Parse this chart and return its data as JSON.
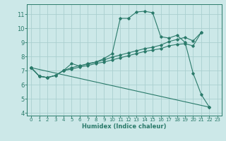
{
  "xlabel": "Humidex (Indice chaleur)",
  "bg_color": "#cce8e8",
  "grid_color": "#aacfcf",
  "line_color": "#2a7a6a",
  "spine_color": "#2a7a6a",
  "xlim": [
    -0.5,
    23.5
  ],
  "ylim": [
    3.8,
    11.7
  ],
  "xticks": [
    0,
    1,
    2,
    3,
    4,
    5,
    6,
    7,
    8,
    9,
    10,
    11,
    12,
    13,
    14,
    15,
    16,
    17,
    18,
    19,
    20,
    21,
    22,
    23
  ],
  "yticks": [
    4,
    5,
    6,
    7,
    8,
    9,
    10,
    11
  ],
  "lines": [
    {
      "x": [
        0,
        1,
        2,
        3,
        4,
        5,
        6,
        7,
        8,
        9,
        10,
        11,
        12,
        13,
        14,
        15,
        16,
        17,
        18,
        19,
        20,
        21,
        22
      ],
      "y": [
        7.2,
        6.6,
        6.5,
        6.65,
        7.0,
        7.5,
        7.3,
        7.5,
        7.6,
        7.85,
        8.2,
        10.7,
        10.7,
        11.15,
        11.2,
        11.1,
        9.4,
        9.3,
        9.5,
        9.0,
        6.8,
        5.3,
        4.4
      ]
    },
    {
      "x": [
        0,
        1,
        2,
        3,
        4,
        5,
        6,
        7,
        8,
        9,
        10,
        11,
        12,
        13,
        14,
        15,
        16,
        17,
        18,
        19,
        20,
        21
      ],
      "y": [
        7.2,
        6.6,
        6.5,
        6.65,
        7.0,
        7.2,
        7.35,
        7.45,
        7.6,
        7.75,
        7.95,
        8.1,
        8.25,
        8.4,
        8.55,
        8.65,
        8.8,
        9.05,
        9.2,
        9.35,
        9.1,
        9.7
      ]
    },
    {
      "x": [
        0,
        1,
        2,
        3,
        4,
        5,
        6,
        7,
        8,
        9,
        10,
        11,
        12,
        13,
        14,
        15,
        16,
        17,
        18,
        19,
        20,
        21
      ],
      "y": [
        7.2,
        6.6,
        6.5,
        6.65,
        7.0,
        7.1,
        7.25,
        7.35,
        7.5,
        7.6,
        7.75,
        7.9,
        8.05,
        8.2,
        8.35,
        8.45,
        8.55,
        8.75,
        8.85,
        8.9,
        8.75,
        9.7
      ]
    },
    {
      "x": [
        0,
        22
      ],
      "y": [
        7.2,
        4.4
      ]
    }
  ]
}
